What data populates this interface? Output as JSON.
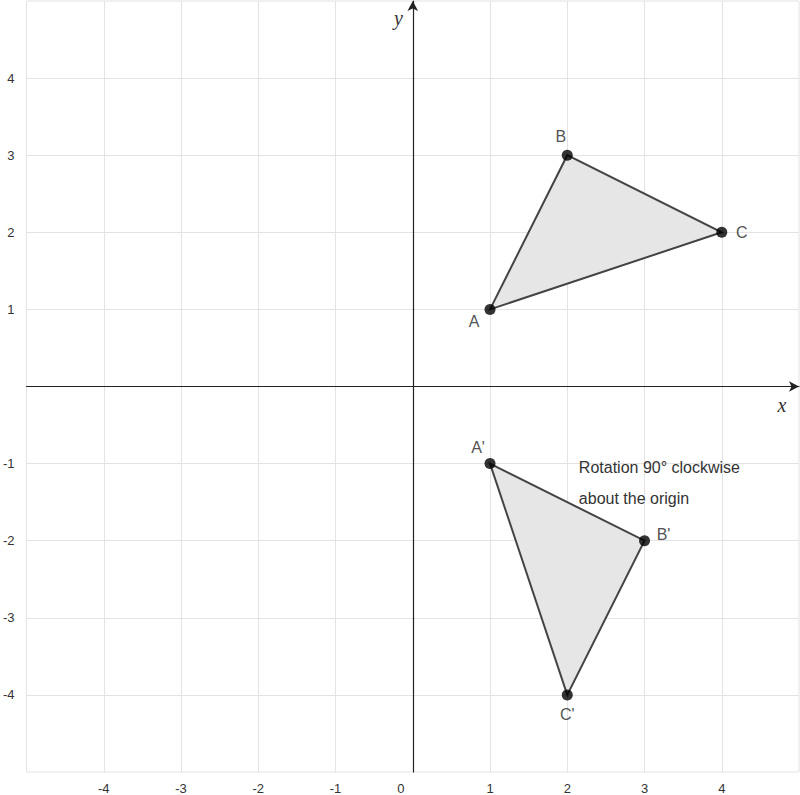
{
  "chart_data": {
    "type": "polygon",
    "x_label": "x",
    "y_label": "y",
    "xlim": [
      -5,
      5
    ],
    "ylim": [
      -5,
      5
    ],
    "xticks": [
      -4,
      -3,
      -2,
      -1,
      0,
      1,
      2,
      3,
      4
    ],
    "yticks": [
      -4,
      -3,
      -2,
      -1,
      1,
      2,
      3,
      4
    ],
    "grid": true,
    "color": "#e6e6e6",
    "shapes": [
      {
        "points": [
          {
            "label": "A",
            "x": 1,
            "y": 1
          },
          {
            "label": "B",
            "x": 2,
            "y": 3
          },
          {
            "label": "C",
            "x": 4,
            "y": 2
          }
        ]
      },
      {
        "points": [
          {
            "label": "A'",
            "x": 1,
            "y": -1
          },
          {
            "label": "B'",
            "x": 3,
            "y": -2
          },
          {
            "label": "C'",
            "x": 2,
            "y": -4
          }
        ]
      }
    ],
    "annotation": {
      "text": "Rotation 90° clockwise\nabout the origin",
      "x": 2.15,
      "y": -0.85
    }
  }
}
